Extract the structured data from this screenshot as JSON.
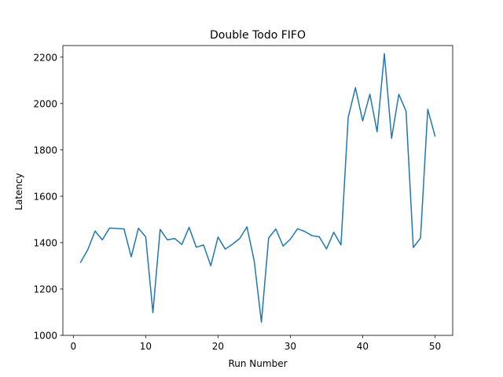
{
  "chart_data": {
    "type": "line",
    "title": "Double Todo FIFO",
    "xlabel": "Run Number",
    "ylabel": "Latency",
    "xlim": [
      -1.45,
      52.45
    ],
    "ylim": [
      1000,
      2250
    ],
    "xticks": [
      0,
      10,
      20,
      30,
      40,
      50
    ],
    "yticks": [
      1000,
      1200,
      1400,
      1600,
      1800,
      2000,
      2200
    ],
    "grid": false,
    "legend": "none",
    "color": "#1f77b4",
    "series": [
      {
        "x": [
          1,
          2,
          3,
          4,
          5,
          6,
          7,
          8,
          9,
          10,
          11,
          12,
          13,
          14,
          15,
          16,
          17,
          18,
          19,
          20,
          21,
          22,
          23,
          24,
          25,
          26,
          27,
          28,
          29,
          30,
          31,
          32,
          33,
          34,
          35,
          36,
          37,
          38,
          39,
          40,
          41,
          42,
          43,
          44,
          45,
          46,
          47,
          48,
          49,
          50
        ],
        "values": [
          1315,
          1370,
          1450,
          1412,
          1463,
          1461,
          1459,
          1339,
          1462,
          1425,
          1098,
          1457,
          1412,
          1418,
          1392,
          1466,
          1380,
          1390,
          1300,
          1424,
          1372,
          1393,
          1418,
          1468,
          1322,
          1057,
          1420,
          1459,
          1385,
          1415,
          1460,
          1448,
          1430,
          1425,
          1373,
          1445,
          1390,
          1940,
          2068,
          1925,
          2040,
          1878,
          2215,
          1850,
          2040,
          1967,
          1379,
          1420,
          1975,
          1860
        ]
      }
    ]
  }
}
